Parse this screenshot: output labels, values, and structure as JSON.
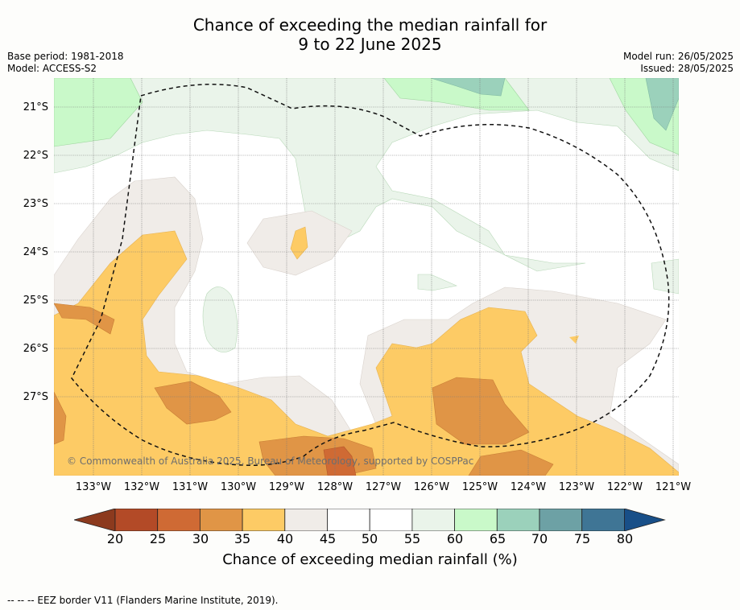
{
  "title_line1": "Chance of exceeding the median rainfall for",
  "title_line2": "9 to 22 June 2025",
  "base_period": "Base period: 1981-2018",
  "model": "Model: ACCESS-S2",
  "model_run": "Model run: 26/05/2025",
  "issued": "Issued: 28/05/2025",
  "copyright": "© Commonwealth of Australia 2025, Bureau of Meteorology, supported by COSPPac",
  "lat_labels": [
    "21°S",
    "22°S",
    "23°S",
    "24°S",
    "25°S",
    "26°S",
    "27°S"
  ],
  "lon_labels": [
    "133°W",
    "132°W",
    "131°W",
    "130°W",
    "129°W",
    "128°W",
    "127°W",
    "126°W",
    "125°W",
    "124°W",
    "123°W",
    "122°W",
    "121°W"
  ],
  "colorbar": {
    "label": "Chance of exceeding median rainfall (%)",
    "ticks": [
      "20",
      "25",
      "30",
      "35",
      "40",
      "45",
      "50",
      "55",
      "60",
      "65",
      "70",
      "75",
      "80"
    ],
    "colors": [
      "#8c3a1e",
      "#b34a27",
      "#cf6a34",
      "#e09546",
      "#fdcb65",
      "#f0ece8",
      "#ffffff",
      "#ffffff",
      "#eaf4ea",
      "#c9f9c9",
      "#9bd1bb",
      "#6da1a5",
      "#3f7595",
      "#184f88"
    ]
  },
  "footnote": "--  --  -- EEZ border V11 (Flanders Marine Institute, 2019)."
}
